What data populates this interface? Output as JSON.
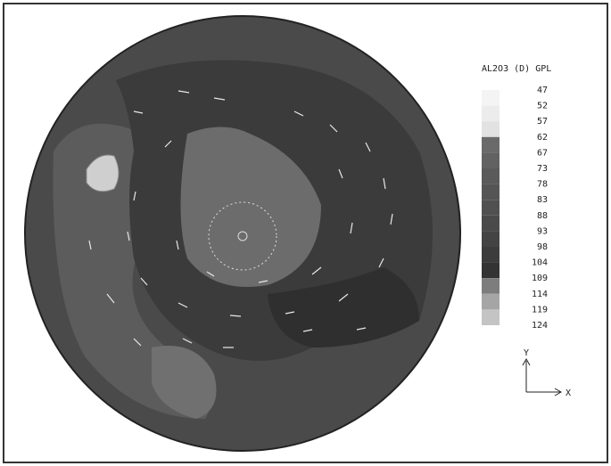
{
  "legend": {
    "title": "AL2O3 (D) GPL",
    "labels": [
      47,
      52,
      57,
      62,
      67,
      73,
      78,
      83,
      88,
      93,
      98,
      104,
      109,
      114,
      119,
      124
    ]
  },
  "axes": {
    "y": "Y",
    "x": "X"
  }
}
